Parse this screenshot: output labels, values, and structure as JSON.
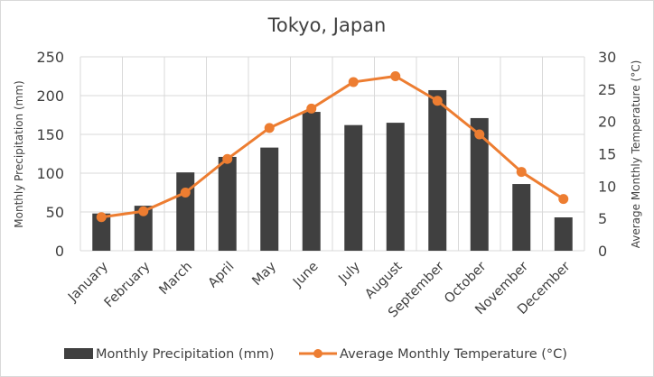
{
  "chart_data": {
    "type": "bar+line",
    "title": "Tokyo, Japan",
    "categories": [
      "January",
      "February",
      "March",
      "April",
      "May",
      "June",
      "July",
      "August",
      "September",
      "October",
      "November",
      "December"
    ],
    "series": [
      {
        "name": "Monthly Precipitation  (mm)",
        "type": "bar",
        "axis": "left",
        "color": "#404040",
        "values": [
          48,
          58,
          101,
          121,
          133,
          179,
          162,
          165,
          207,
          171,
          86,
          43
        ]
      },
      {
        "name": "Average Monthly  Temperature (°C)",
        "type": "line",
        "axis": "right",
        "color": "#ED7D31",
        "values": [
          5.2,
          6.1,
          9.0,
          14.2,
          19.0,
          22.0,
          26.1,
          27.0,
          23.2,
          18.0,
          12.2,
          8.0
        ]
      }
    ],
    "ylabel": "Monthly Precipitation  (mm)",
    "y2label": "Average Monthly  Temperature (°C)",
    "ylim": [
      0,
      250
    ],
    "y2lim": [
      0,
      30
    ],
    "yticks": [
      "0",
      "50",
      "100",
      "150",
      "200",
      "250"
    ],
    "y2ticks": [
      "0",
      "5",
      "10",
      "15",
      "20",
      "25",
      "30"
    ],
    "grid": true,
    "legend": "bottom"
  }
}
